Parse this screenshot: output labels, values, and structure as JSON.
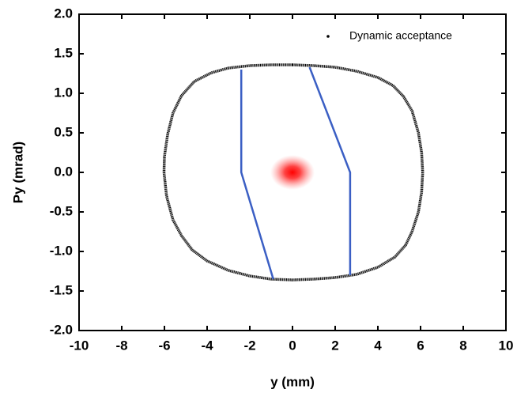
{
  "chart_data": {
    "type": "scatter",
    "xlabel": "y (mm)",
    "ylabel": "Py (mrad)",
    "xlim": [
      -10,
      10
    ],
    "ylim": [
      -2,
      2
    ],
    "xticks": [
      -10,
      -8,
      -6,
      -4,
      -2,
      0,
      2,
      4,
      6,
      8,
      10
    ],
    "yticks": [
      {
        "value": -2,
        "label": "-2.0"
      },
      -1.5,
      {
        "value": -1,
        "label": "-1.0"
      },
      -0.5,
      {
        "value": 0,
        "label": "0.0"
      },
      0.5,
      {
        "value": 1,
        "label": "1.0"
      },
      1.5,
      {
        "value": 2,
        "label": "2.0"
      }
    ],
    "legend": "upper right",
    "series": [
      {
        "name": "Dynamic acceptance",
        "color": "#000000",
        "mode": "dotted-loop",
        "x": [
          0,
          1,
          2,
          3,
          4,
          4.7,
          5.2,
          5.6,
          5.9,
          6.05,
          6.1,
          6.05,
          5.9,
          5.6,
          5.3,
          4.8,
          4,
          3,
          2,
          1,
          0,
          -1,
          -2,
          -3,
          -4,
          -4.7,
          -5.2,
          -5.6,
          -5.9,
          -6.02,
          -6,
          -5.85,
          -5.6,
          -5.2,
          -4.6,
          -3.8,
          -3,
          -2,
          -1,
          0
        ],
        "values": [
          1.36,
          1.35,
          1.33,
          1.28,
          1.2,
          1.1,
          0.96,
          0.78,
          0.5,
          0.25,
          0,
          -0.25,
          -0.5,
          -0.75,
          -0.92,
          -1.07,
          -1.2,
          -1.29,
          -1.33,
          -1.35,
          -1.36,
          -1.35,
          -1.31,
          -1.24,
          -1.12,
          -0.98,
          -0.8,
          -0.6,
          -0.3,
          0,
          0.2,
          0.48,
          0.75,
          0.97,
          1.15,
          1.26,
          1.32,
          1.35,
          1.36,
          1.36
        ]
      },
      {
        "color": "#3b5fc4",
        "mode": "line",
        "x": [
          -2.4,
          -2.4,
          -0.9
        ],
        "values": [
          1.3,
          0,
          -1.35
        ]
      },
      {
        "color": "#3b5fc4",
        "mode": "line",
        "x": [
          0.8,
          2.7,
          2.7
        ],
        "values": [
          1.33,
          0,
          -1.3
        ]
      },
      {
        "color": "#ff0000",
        "mode": "glow",
        "x": [
          0
        ],
        "values": [
          0
        ]
      }
    ]
  }
}
